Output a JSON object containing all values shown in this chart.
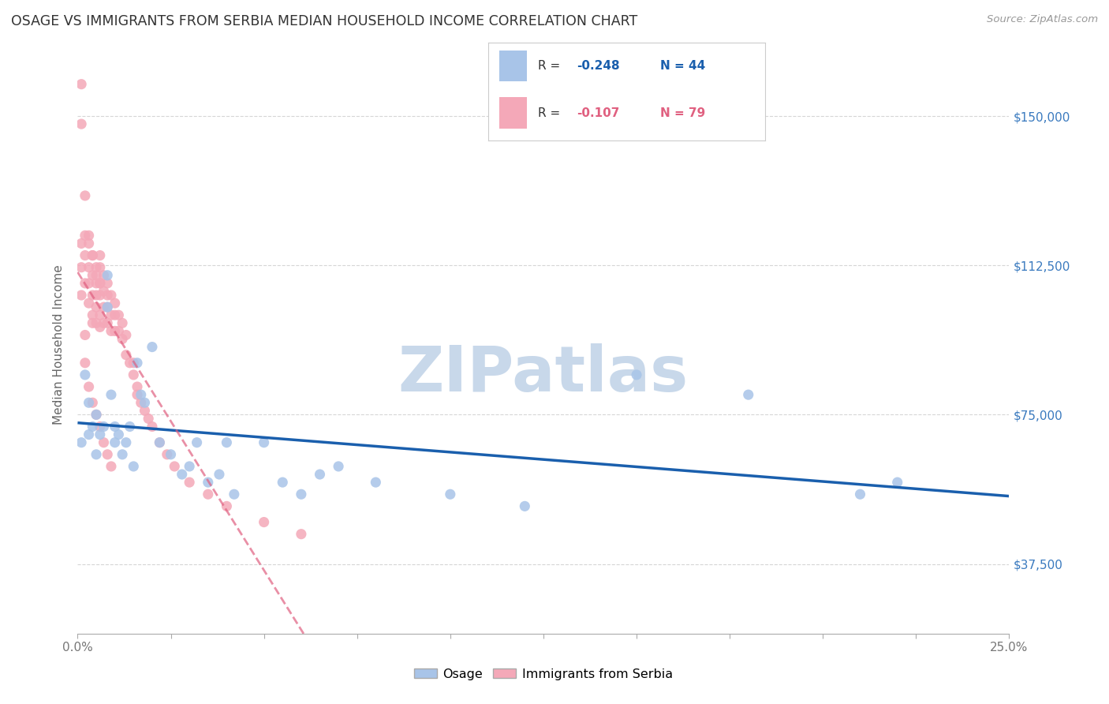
{
  "title": "OSAGE VS IMMIGRANTS FROM SERBIA MEDIAN HOUSEHOLD INCOME CORRELATION CHART",
  "source": "Source: ZipAtlas.com",
  "ylabel": "Median Household Income",
  "yticks": [
    37500,
    75000,
    112500,
    150000
  ],
  "ytick_labels": [
    "$37,500",
    "$75,000",
    "$112,500",
    "$150,000"
  ],
  "xmin": 0.0,
  "xmax": 0.25,
  "ymin": 20000,
  "ymax": 165000,
  "color_osage": "#a8c4e8",
  "color_serbia": "#f4a8b8",
  "trendline_osage_color": "#1a5fad",
  "trendline_serbia_color": "#e06080",
  "background_color": "#ffffff",
  "grid_color": "#cccccc",
  "title_color": "#333333",
  "ytick_color": "#3a7abf",
  "xtick_color": "#777777",
  "watermark": "ZIPatlas",
  "watermark_color": "#c8d8ea",
  "legend_r_color": "#1a5fad",
  "legend_r_serbia_color": "#e06080",
  "osage_x": [
    0.001,
    0.002,
    0.003,
    0.003,
    0.004,
    0.005,
    0.005,
    0.006,
    0.007,
    0.008,
    0.008,
    0.009,
    0.01,
    0.01,
    0.011,
    0.012,
    0.013,
    0.014,
    0.015,
    0.016,
    0.017,
    0.018,
    0.02,
    0.022,
    0.025,
    0.028,
    0.03,
    0.032,
    0.035,
    0.038,
    0.04,
    0.042,
    0.05,
    0.055,
    0.06,
    0.065,
    0.07,
    0.08,
    0.1,
    0.12,
    0.15,
    0.18,
    0.21,
    0.22
  ],
  "osage_y": [
    68000,
    85000,
    78000,
    70000,
    72000,
    75000,
    65000,
    70000,
    72000,
    110000,
    102000,
    80000,
    72000,
    68000,
    70000,
    65000,
    68000,
    72000,
    62000,
    88000,
    80000,
    78000,
    92000,
    68000,
    65000,
    60000,
    62000,
    68000,
    58000,
    60000,
    68000,
    55000,
    68000,
    58000,
    55000,
    60000,
    62000,
    58000,
    55000,
    52000,
    85000,
    80000,
    55000,
    58000
  ],
  "serbia_x": [
    0.001,
    0.001,
    0.001,
    0.002,
    0.002,
    0.002,
    0.003,
    0.003,
    0.003,
    0.003,
    0.004,
    0.004,
    0.004,
    0.004,
    0.004,
    0.005,
    0.005,
    0.005,
    0.005,
    0.005,
    0.006,
    0.006,
    0.006,
    0.006,
    0.006,
    0.006,
    0.007,
    0.007,
    0.007,
    0.007,
    0.008,
    0.008,
    0.008,
    0.008,
    0.009,
    0.009,
    0.009,
    0.01,
    0.01,
    0.01,
    0.011,
    0.011,
    0.012,
    0.012,
    0.013,
    0.013,
    0.014,
    0.015,
    0.015,
    0.016,
    0.016,
    0.017,
    0.018,
    0.019,
    0.02,
    0.022,
    0.024,
    0.026,
    0.03,
    0.035,
    0.04,
    0.05,
    0.06,
    0.001,
    0.002,
    0.002,
    0.003,
    0.004,
    0.005,
    0.006,
    0.007,
    0.008,
    0.009,
    0.001,
    0.002,
    0.003,
    0.004,
    0.005,
    0.006
  ],
  "serbia_y": [
    148000,
    118000,
    112000,
    120000,
    115000,
    108000,
    118000,
    112000,
    108000,
    103000,
    115000,
    110000,
    105000,
    100000,
    98000,
    112000,
    108000,
    105000,
    102000,
    98000,
    115000,
    112000,
    108000,
    105000,
    100000,
    97000,
    110000,
    106000,
    102000,
    98000,
    108000,
    105000,
    102000,
    98000,
    105000,
    100000,
    96000,
    103000,
    100000,
    96000,
    100000,
    96000,
    98000,
    94000,
    95000,
    90000,
    88000,
    88000,
    85000,
    82000,
    80000,
    78000,
    76000,
    74000,
    72000,
    68000,
    65000,
    62000,
    58000,
    55000,
    52000,
    48000,
    45000,
    105000,
    95000,
    88000,
    82000,
    78000,
    75000,
    72000,
    68000,
    65000,
    62000,
    158000,
    130000,
    120000,
    115000,
    110000,
    108000
  ]
}
